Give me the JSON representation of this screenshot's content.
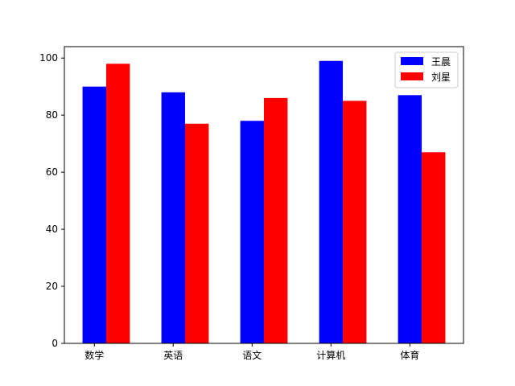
{
  "chart_data": {
    "type": "bar",
    "categories": [
      "数学",
      "英语",
      "语文",
      "计算机",
      "体育"
    ],
    "series": [
      {
        "name": "王晨",
        "color": "#0000ff",
        "values": [
          90,
          88,
          78,
          99,
          87
        ]
      },
      {
        "name": "刘星",
        "color": "#ff0000",
        "values": [
          98,
          77,
          86,
          85,
          67
        ]
      }
    ],
    "ylim": [
      0,
      104
    ],
    "yticks": [
      0,
      20,
      40,
      60,
      80,
      100
    ],
    "grid": false,
    "legend_position": "top-right"
  }
}
